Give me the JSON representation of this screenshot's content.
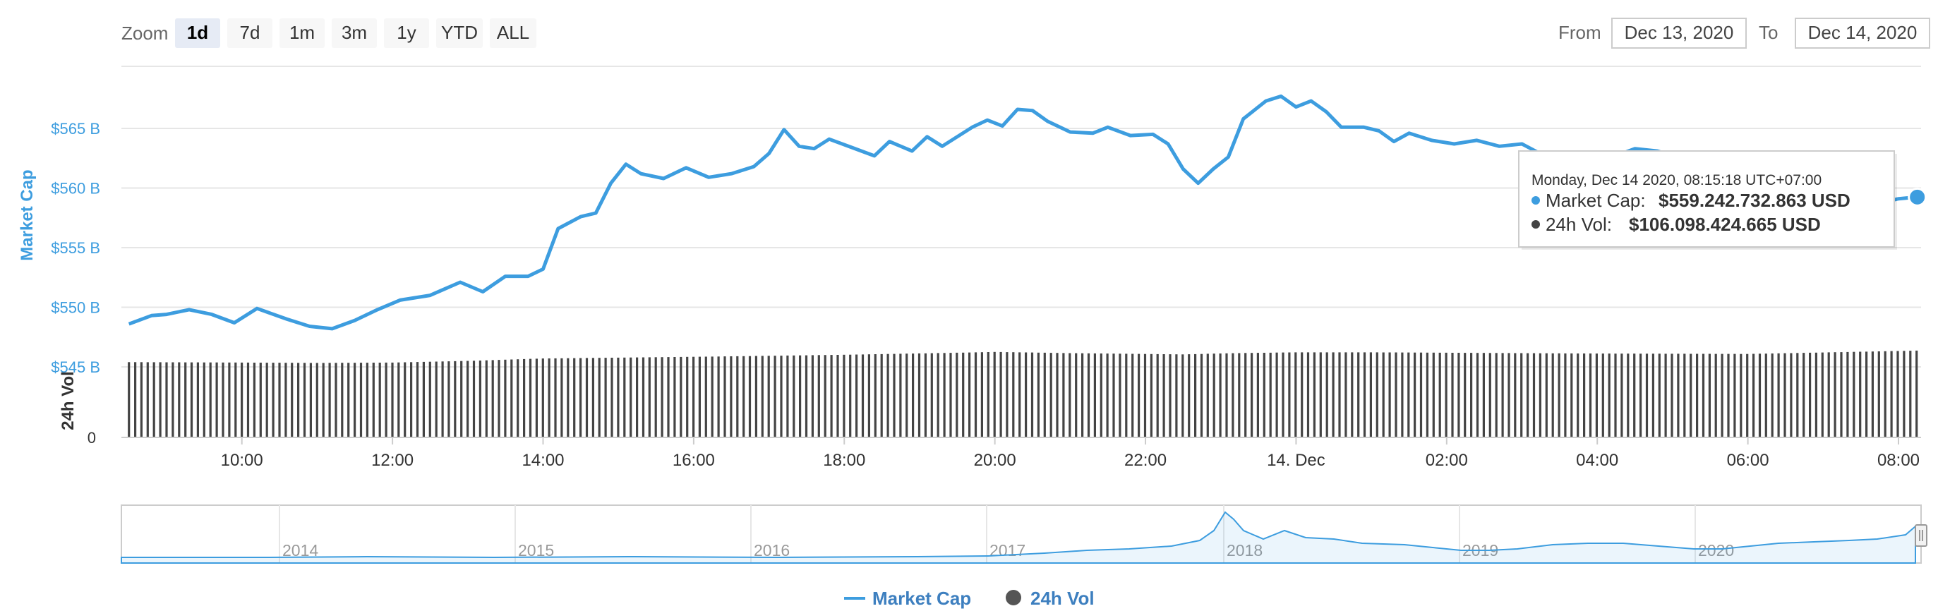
{
  "toolbar": {
    "zoom_label": "Zoom",
    "ranges": [
      "1d",
      "7d",
      "1m",
      "3m",
      "1y",
      "YTD",
      "ALL"
    ],
    "selected_range": "1d",
    "from_label": "From",
    "from_value": "Dec 13, 2020",
    "to_label": "To",
    "to_value": "Dec 14, 2020"
  },
  "tooltip": {
    "title": "Monday, Dec 14 2020, 08:15:18 UTC+07:00",
    "market_cap_label": "Market Cap:",
    "market_cap_value": "$559.242.732.863 USD",
    "vol_label": "24h Vol:",
    "vol_value": "$106.098.424.665 USD"
  },
  "navigator": {
    "years": [
      "2014",
      "2015",
      "2016",
      "2017",
      "2018",
      "2019",
      "2020"
    ]
  },
  "legend": {
    "market_cap": "Market Cap",
    "vol": "24h Vol"
  },
  "colors": {
    "market_cap": "#3d9ddf",
    "volume": "#444444"
  },
  "chart_data": {
    "type": "line",
    "title": "",
    "ylabel": "Market Cap",
    "ylabel_secondary": "24h Vol",
    "y_unit": "B USD",
    "ylim": [
      545,
      570
    ],
    "yticks": [
      545,
      550,
      555,
      560,
      565
    ],
    "ytick_labels": [
      "$545 B",
      "$550 B",
      "$555 B",
      "$560 B",
      "$565 B"
    ],
    "vol_ytick_labels": [
      "0"
    ],
    "xlim": [
      8.4,
      32.3
    ],
    "xticks": [
      10,
      12,
      14,
      16,
      18,
      20,
      22,
      24,
      26,
      28,
      30,
      32
    ],
    "xtick_labels": [
      "10:00",
      "12:00",
      "14:00",
      "16:00",
      "18:00",
      "20:00",
      "22:00",
      "14. Dec",
      "02:00",
      "04:00",
      "06:00",
      "08:00"
    ],
    "series": [
      {
        "name": "Market Cap",
        "points": [
          [
            8.5,
            548.6
          ],
          [
            8.8,
            549.3
          ],
          [
            9.0,
            549.4
          ],
          [
            9.3,
            549.8
          ],
          [
            9.6,
            549.4
          ],
          [
            9.9,
            548.7
          ],
          [
            10.2,
            549.9
          ],
          [
            10.6,
            549.0
          ],
          [
            10.9,
            548.4
          ],
          [
            11.2,
            548.2
          ],
          [
            11.5,
            548.9
          ],
          [
            11.8,
            549.8
          ],
          [
            12.1,
            550.6
          ],
          [
            12.5,
            551.0
          ],
          [
            12.9,
            552.1
          ],
          [
            13.2,
            551.3
          ],
          [
            13.5,
            552.6
          ],
          [
            13.8,
            552.6
          ],
          [
            14.0,
            553.2
          ],
          [
            14.2,
            556.6
          ],
          [
            14.5,
            557.6
          ],
          [
            14.7,
            557.9
          ],
          [
            14.9,
            560.4
          ],
          [
            15.1,
            562.0
          ],
          [
            15.3,
            561.2
          ],
          [
            15.6,
            560.8
          ],
          [
            15.9,
            561.7
          ],
          [
            16.2,
            560.9
          ],
          [
            16.5,
            561.2
          ],
          [
            16.8,
            561.8
          ],
          [
            17.0,
            562.9
          ],
          [
            17.2,
            564.9
          ],
          [
            17.4,
            563.5
          ],
          [
            17.6,
            563.3
          ],
          [
            17.8,
            564.1
          ],
          [
            18.1,
            563.4
          ],
          [
            18.4,
            562.7
          ],
          [
            18.6,
            563.9
          ],
          [
            18.9,
            563.1
          ],
          [
            19.1,
            564.3
          ],
          [
            19.3,
            563.5
          ],
          [
            19.7,
            565.1
          ],
          [
            19.9,
            565.7
          ],
          [
            20.1,
            565.2
          ],
          [
            20.3,
            566.6
          ],
          [
            20.5,
            566.5
          ],
          [
            20.7,
            565.6
          ],
          [
            21.0,
            564.7
          ],
          [
            21.3,
            564.6
          ],
          [
            21.5,
            565.1
          ],
          [
            21.8,
            564.4
          ],
          [
            22.1,
            564.5
          ],
          [
            22.3,
            563.7
          ],
          [
            22.5,
            561.6
          ],
          [
            22.7,
            560.4
          ],
          [
            22.9,
            561.6
          ],
          [
            23.1,
            562.6
          ],
          [
            23.3,
            565.8
          ],
          [
            23.6,
            567.3
          ],
          [
            23.8,
            567.7
          ],
          [
            24.0,
            566.8
          ],
          [
            24.2,
            567.3
          ],
          [
            24.4,
            566.4
          ],
          [
            24.6,
            565.1
          ],
          [
            24.9,
            565.1
          ],
          [
            25.1,
            564.8
          ],
          [
            25.3,
            563.9
          ],
          [
            25.5,
            564.6
          ],
          [
            25.8,
            564.0
          ],
          [
            26.1,
            563.7
          ],
          [
            26.4,
            564.0
          ],
          [
            26.7,
            563.5
          ],
          [
            27.0,
            563.7
          ],
          [
            27.3,
            562.7
          ],
          [
            27.6,
            562.1
          ],
          [
            27.9,
            562.5
          ],
          [
            28.2,
            562.6
          ],
          [
            28.5,
            563.3
          ],
          [
            28.8,
            563.1
          ],
          [
            29.1,
            562.5
          ],
          [
            29.4,
            561.5
          ],
          [
            29.7,
            562.3
          ],
          [
            30.0,
            562.9
          ],
          [
            30.3,
            561.9
          ],
          [
            30.6,
            561.2
          ],
          [
            30.9,
            562.1
          ],
          [
            31.2,
            560.3
          ],
          [
            31.5,
            559.1
          ],
          [
            31.8,
            558.8
          ],
          [
            32.0,
            559.1
          ],
          [
            32.25,
            559.24
          ]
        ]
      },
      {
        "name": "24h Vol",
        "axis": "secondary",
        "note_unit": "B USD",
        "points": [
          [
            8.5,
            92.0
          ],
          [
            10.0,
            91.5
          ],
          [
            11.0,
            91.0
          ],
          [
            12.0,
            91.5
          ],
          [
            13.0,
            93.5
          ],
          [
            14.0,
            96.5
          ],
          [
            16.0,
            98.5
          ],
          [
            18.0,
            101.0
          ],
          [
            19.5,
            103.5
          ],
          [
            20.0,
            104.5
          ],
          [
            21.0,
            103.0
          ],
          [
            22.5,
            101.5
          ],
          [
            23.2,
            103.0
          ],
          [
            24.0,
            104.0
          ],
          [
            25.0,
            104.0
          ],
          [
            26.0,
            103.5
          ],
          [
            28.0,
            102.5
          ],
          [
            30.0,
            102.0
          ],
          [
            32.25,
            106.1
          ]
        ]
      }
    ],
    "legend": [
      "Market Cap",
      "24h Vol"
    ],
    "legend_position": "bottom",
    "grid": true
  }
}
